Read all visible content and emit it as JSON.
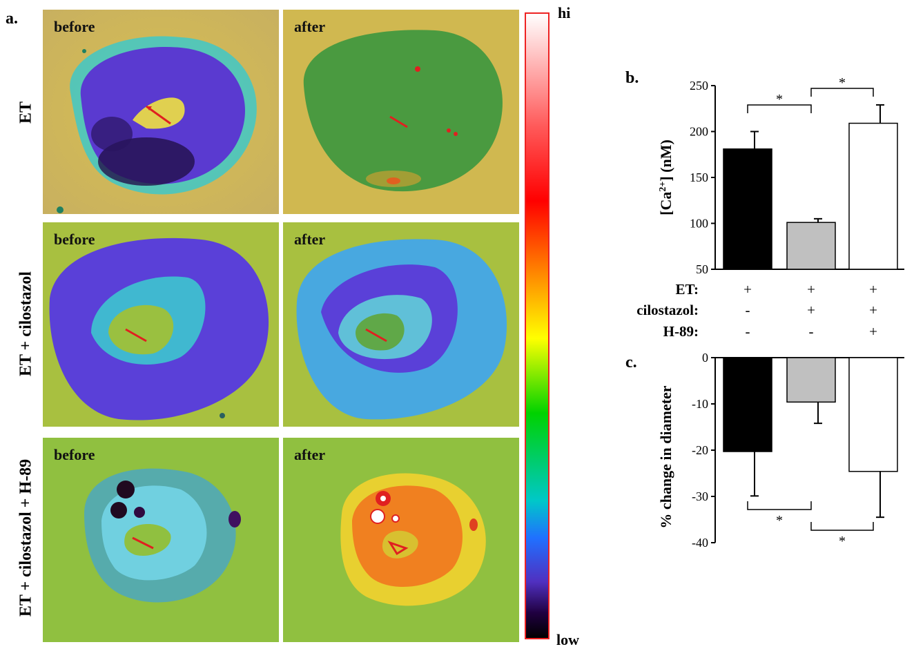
{
  "figure": {
    "panel_a_letter": "a.",
    "panel_b_letter": "b.",
    "panel_c_letter": "c.",
    "rows": [
      {
        "label": "ET",
        "before": "before",
        "after": "after"
      },
      {
        "label": "ET + cilostazol",
        "before": "before",
        "after": "after"
      },
      {
        "label": "ET + cilostazol + H-89",
        "before": "before",
        "after": "after"
      }
    ],
    "colorbar": {
      "high_label": "hi",
      "low_label": "low"
    },
    "treatment_table": {
      "rows": [
        {
          "label": "ET:",
          "values": [
            "+",
            "+",
            "+"
          ]
        },
        {
          "label": "cilostazol:",
          "values": [
            "-",
            "+",
            "+"
          ]
        },
        {
          "label": "H-89:",
          "values": [
            "-",
            "-",
            "+"
          ]
        }
      ]
    }
  },
  "chart_data": [
    {
      "type": "bar",
      "panel": "b.",
      "categories": [
        "ET",
        "ET + cilostazol",
        "ET + cilostazol + H-89"
      ],
      "values": [
        181,
        101,
        209
      ],
      "errors": [
        19,
        4,
        20
      ],
      "colors": [
        "#000000",
        "#c0c0c0",
        "#ffffff"
      ],
      "ylabel": "[Ca2+] (nM)",
      "ylim": [
        50,
        250
      ],
      "yticks": [
        "50",
        "100",
        "150",
        "200",
        "250"
      ],
      "significance": [
        {
          "pair": [
            0,
            1
          ],
          "label": "*"
        },
        {
          "pair": [
            1,
            2
          ],
          "label": "*"
        }
      ]
    },
    {
      "type": "bar",
      "panel": "c.",
      "categories": [
        "ET",
        "ET + cilostazol",
        "ET + cilostazol + H-89"
      ],
      "values": [
        -20.3,
        -9.6,
        -24.6
      ],
      "errors": [
        9.6,
        4.6,
        9.9
      ],
      "colors": [
        "#000000",
        "#c0c0c0",
        "#ffffff"
      ],
      "ylabel": "% change in diameter",
      "ylim": [
        -40,
        0
      ],
      "yticks": [
        "0",
        "-10",
        "-20",
        "-30",
        "-40"
      ],
      "significance": [
        {
          "pair": [
            0,
            1
          ],
          "label": "*"
        },
        {
          "pair": [
            1,
            2
          ],
          "label": "*"
        }
      ]
    }
  ]
}
